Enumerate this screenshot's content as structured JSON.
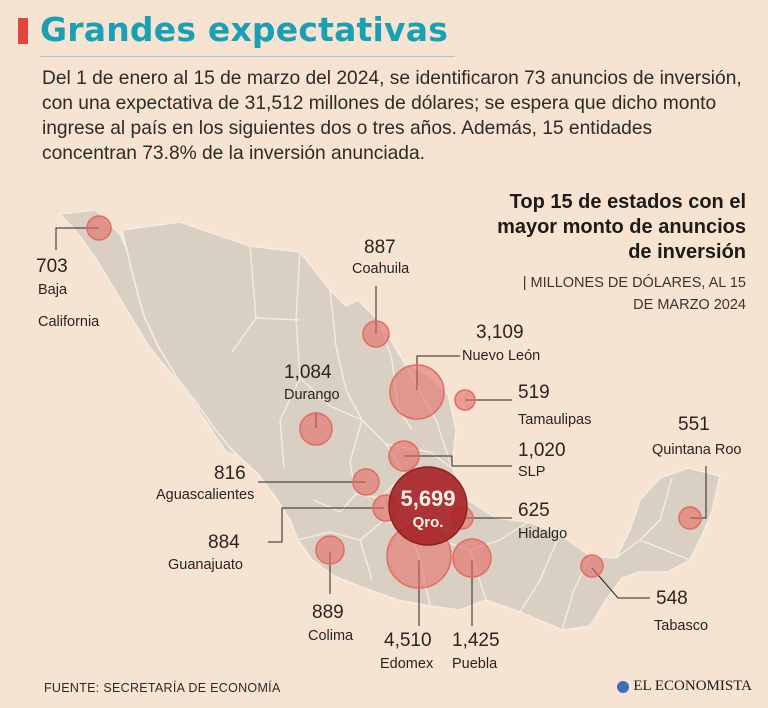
{
  "header": {
    "title": "Grandes expectativas",
    "intro": "Del 1 de enero al 15 de marzo del 2024, se identificaron 73 anuncios de inversión, con una expectativa de 31,512 millones de dólares; se espera que dicho monto ingrese al país en los siguientes dos o tres años. Además, 15 entidades concentran 73.8% de la inversión anunciada."
  },
  "panel": {
    "title": "Top 15 de estados con el mayor monto de anuncios de inversión",
    "subtitle_pipe": "|",
    "subtitle": "MILLONES DE DÓLARES, AL 15 DE MARZO 2024"
  },
  "colors": {
    "background": "#f6e3d2",
    "land": "#d9cfc3",
    "state_border": "#f4ece2",
    "bubble": "#e36a62",
    "bubble_main": "#a8262a",
    "title": "#1aa0b5",
    "accent_bar": "#e2463f"
  },
  "states": [
    {
      "name": "Baja California",
      "name_line1": "Baja",
      "name_line2": "California",
      "value": "703"
    },
    {
      "name": "Coahuila",
      "value": "887"
    },
    {
      "name": "Nuevo León",
      "value": "3,109"
    },
    {
      "name": "Durango",
      "value": "1,084"
    },
    {
      "name": "Tamaulipas",
      "value": "519"
    },
    {
      "name": "SLP",
      "value": "1,020"
    },
    {
      "name": "Quintana Roo",
      "value": "551"
    },
    {
      "name": "Aguascalientes",
      "value": "816"
    },
    {
      "name": "Qro.",
      "value": "5,699"
    },
    {
      "name": "Hidalgo",
      "value": "625"
    },
    {
      "name": "Guanajuato",
      "value": "884"
    },
    {
      "name": "Colima",
      "value": "889"
    },
    {
      "name": "Edomex",
      "value": "4,510"
    },
    {
      "name": "Puebla",
      "value": "1,425"
    },
    {
      "name": "Tabasco",
      "value": "548"
    }
  ],
  "footer": {
    "source": "FUENTE: SECRETARÍA DE ECONOMÍA",
    "brand": "EL ECONOMISTA",
    "brand_icon": "el-economista-logo-icon"
  }
}
